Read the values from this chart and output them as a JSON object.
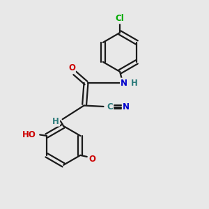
{
  "background_color": "#e8e8e8",
  "bond_color": "#1a1a1a",
  "bond_width": 1.6,
  "atom_colors": {
    "C": "#2a7a7a",
    "N": "#0000cc",
    "O": "#cc0000",
    "Cl": "#00aa00",
    "H": "#2a7a7a"
  },
  "font_size_atom": 8.5,
  "font_size_small": 7.5
}
